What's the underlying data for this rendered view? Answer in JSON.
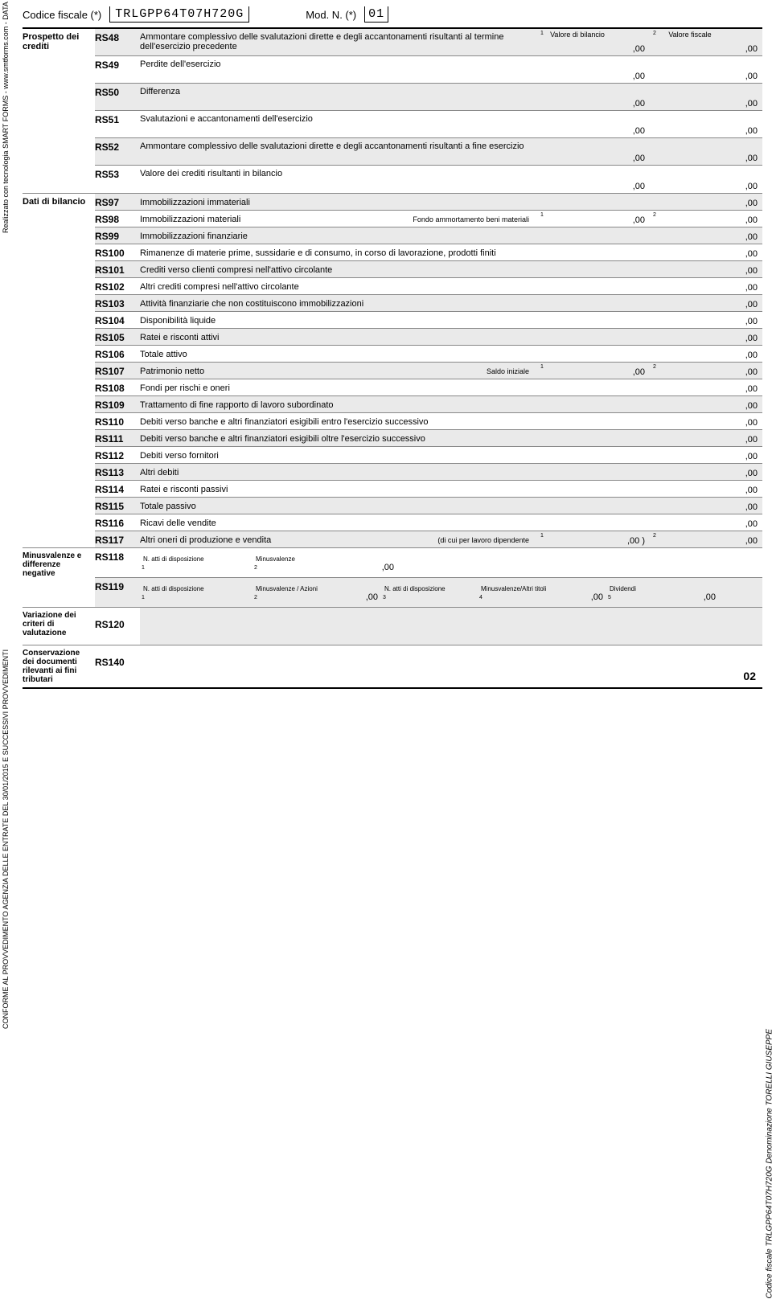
{
  "header": {
    "cf_label": "Codice fiscale (*)",
    "cf_value": "TRLGPP64T07H720G",
    "modn_label": "Mod. N. (*)",
    "modn_value": "01"
  },
  "col_headers": {
    "c1": "Valore di bilancio",
    "c2": "Valore fiscale"
  },
  "section1": {
    "title": "Prospetto dei crediti",
    "rows": [
      {
        "code": "RS48",
        "desc": "Ammontare complessivo delle svalutazioni dirette e degli accantonamenti risultanti al termine dell'esercizio precedente",
        "v1": ",00",
        "v2": ",00",
        "shade": true,
        "sup": true
      },
      {
        "code": "RS49",
        "desc": "Perdite dell'esercizio",
        "v1": ",00",
        "v2": ",00"
      },
      {
        "code": "RS50",
        "desc": "Differenza",
        "v1": ",00",
        "v2": ",00",
        "shade": true
      },
      {
        "code": "RS51",
        "desc": "Svalutazioni e accantonamenti dell'esercizio",
        "v1": ",00",
        "v2": ",00"
      },
      {
        "code": "RS52",
        "desc": "Ammontare complessivo delle svalutazioni dirette e degli accantonamenti risultanti a fine esercizio",
        "v1": ",00",
        "v2": ",00",
        "shade": true
      },
      {
        "code": "RS53",
        "desc": "Valore dei crediti risultanti in bilancio",
        "v1": ",00",
        "v2": ",00"
      }
    ]
  },
  "section2": {
    "title": "Dati di bilancio",
    "rows": [
      {
        "code": "RS97",
        "desc": "Immobilizzazioni immateriali",
        "v2": ",00",
        "shade": true
      },
      {
        "code": "RS98",
        "desc": "Immobilizzazioni materiali",
        "mid_label": "Fondo ammortamento beni materiali",
        "v1": ",00",
        "v2": ",00",
        "sup": true
      },
      {
        "code": "RS99",
        "desc": "Immobilizzazioni finanziarie",
        "v2": ",00",
        "shade": true
      },
      {
        "code": "RS100",
        "desc": "Rimanenze di materie prime, sussidarie e di consumo, in corso di lavorazione, prodotti finiti",
        "v2": ",00"
      },
      {
        "code": "RS101",
        "desc": "Crediti verso clienti compresi nell'attivo circolante",
        "v2": ",00",
        "shade": true
      },
      {
        "code": "RS102",
        "desc": "Altri crediti compresi nell'attivo circolante",
        "v2": ",00"
      },
      {
        "code": "RS103",
        "desc": "Attività finanziarie che non costituiscono immobilizzazioni",
        "v2": ",00",
        "shade": true
      },
      {
        "code": "RS104",
        "desc": "Disponibilità liquide",
        "v2": ",00"
      },
      {
        "code": "RS105",
        "desc": "Ratei e risconti attivi",
        "v2": ",00",
        "shade": true
      },
      {
        "code": "RS106",
        "desc": "Totale attivo",
        "v2": ",00"
      },
      {
        "code": "RS107",
        "desc": "Patrimonio netto",
        "mid_label": "Saldo iniziale",
        "v1": ",00",
        "v2": ",00",
        "shade": true,
        "sup": true
      },
      {
        "code": "RS108",
        "desc": "Fondi per rischi e oneri",
        "v2": ",00"
      },
      {
        "code": "RS109",
        "desc": "Trattamento di fine rapporto di lavoro subordinato",
        "v2": ",00",
        "shade": true
      },
      {
        "code": "RS110",
        "desc": "Debiti verso banche e altri finanziatori esigibili entro l'esercizio successivo",
        "v2": ",00"
      },
      {
        "code": "RS111",
        "desc": "Debiti verso banche e altri finanziatori esigibili oltre l'esercizio successivo",
        "v2": ",00",
        "shade": true
      },
      {
        "code": "RS112",
        "desc": "Debiti verso fornitori",
        "v2": ",00"
      },
      {
        "code": "RS113",
        "desc": "Altri debiti",
        "v2": ",00",
        "shade": true
      },
      {
        "code": "RS114",
        "desc": "Ratei e risconti passivi",
        "v2": ",00"
      },
      {
        "code": "RS115",
        "desc": "Totale passivo",
        "v2": ",00",
        "shade": true
      },
      {
        "code": "RS116",
        "desc": "Ricavi delle vendite",
        "v2": ",00"
      },
      {
        "code": "RS117",
        "desc": "Altri oneri di produzione e vendita",
        "mid_label": "(di cui per lavoro dipendente",
        "v1": ",00 )",
        "v2": ",00",
        "shade": true,
        "sup": true
      }
    ]
  },
  "section3": {
    "title": "Minusvalenze e differenze negative",
    "r118": {
      "code": "RS118",
      "labels": {
        "atti": "N. atti di disposizione",
        "minus": "Minusvalenze"
      },
      "v2": ",00"
    },
    "r119": {
      "code": "RS119",
      "labels": {
        "atti": "N. atti di disposizione",
        "azioni": "Minusvalenze / Azioni",
        "atti2": "N. atti di disposizione",
        "altri": "Minusvalenze/Altri titoli",
        "div": "Dividendi"
      },
      "v2": ",00",
      "v4": ",00",
      "v5": ",00"
    }
  },
  "section4": {
    "title": "Variazione dei criteri di valutazione",
    "code": "RS120"
  },
  "section5": {
    "title": "Conservazione dei documenti rilevanti ai fini tributari",
    "code": "RS140",
    "page": "02"
  },
  "side": {
    "left1": "Realizzato con tecnologia SMART FORMS - www.smtforms.com - DATA PRINT GRAFIK",
    "left2": "CONFORME AL PROVVEDIMENTO AGENZIA DELLE ENTRATE DEL 30/01/2015 E SUCCESSIVI PROVVEDIMENTI",
    "right": "Codice fiscale TRLGPP64T07H720G Denominazione TORELLI GIUSEPPE"
  }
}
